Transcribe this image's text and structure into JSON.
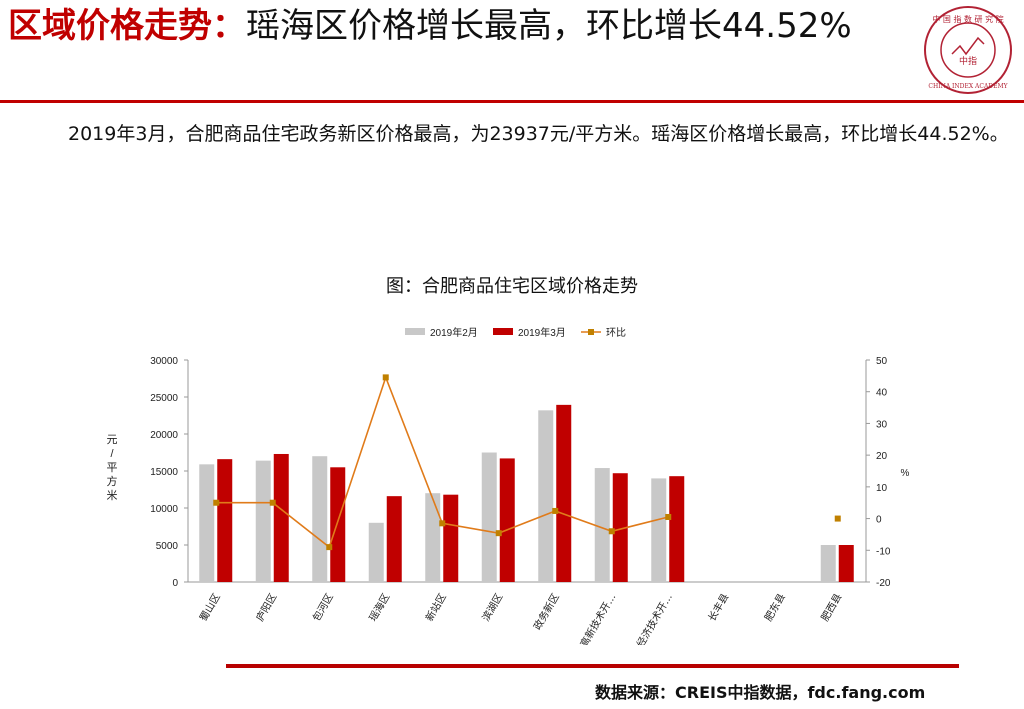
{
  "header": {
    "title_part1": "区域价格走势：",
    "title_part2": "瑶海区价格增长最高，环比增长44.52%"
  },
  "logo": {
    "name": "china-index-academy-seal",
    "top_text": "中 国 指 数 研 究 院",
    "center_text": "中指",
    "bottom_text": "CHINA INDEX ACADEMY",
    "color": "#b22234"
  },
  "paragraph": {
    "text": "2019年3月，合肥商品住宅政务新区价格最高，为23937元/平方米。瑶海区价格增长最高，环比增长44.52%。"
  },
  "chart_title": "图：合肥商品住宅区域价格走势",
  "chart_data": {
    "type": "bar",
    "categories": [
      "蜀山区",
      "庐阳区",
      "包河区",
      "瑶海区",
      "新站区",
      "滨湖区",
      "政务新区",
      "高新技术开…",
      "经济技术开…",
      "长丰县",
      "肥东县",
      "肥西县"
    ],
    "series": [
      {
        "name": "2019年2月",
        "kind": "bar",
        "axis": "left",
        "color": "#c8c8c8",
        "values": [
          15900,
          16400,
          17000,
          8000,
          12000,
          17500,
          23200,
          15400,
          14000,
          null,
          null,
          5000
        ]
      },
      {
        "name": "2019年3月",
        "kind": "bar",
        "axis": "left",
        "color": "#c00000",
        "values": [
          16600,
          17300,
          15500,
          11600,
          11800,
          16700,
          23937,
          14700,
          14300,
          null,
          null,
          5000
        ]
      },
      {
        "name": "环比",
        "kind": "line",
        "axis": "right",
        "color": "#e07b1a",
        "values": [
          5,
          5,
          -9,
          44.52,
          -1.5,
          -4.6,
          2.4,
          -4,
          0.5,
          null,
          null,
          0
        ]
      }
    ],
    "y_left": {
      "min": 0,
      "max": 30000,
      "ticks": [
        0,
        5000,
        10000,
        15000,
        20000,
        25000,
        30000
      ],
      "label": "元/平方米"
    },
    "y_right": {
      "min": -20,
      "max": 50,
      "ticks": [
        -20,
        -10,
        0,
        10,
        20,
        30,
        40,
        50
      ],
      "label": "%"
    },
    "legend_position": "top",
    "grid": false
  },
  "source": "数据来源：CREIS中指数据，fdc.fang.com",
  "colors": {
    "accent": "#c00000",
    "rule": "#b80000"
  }
}
